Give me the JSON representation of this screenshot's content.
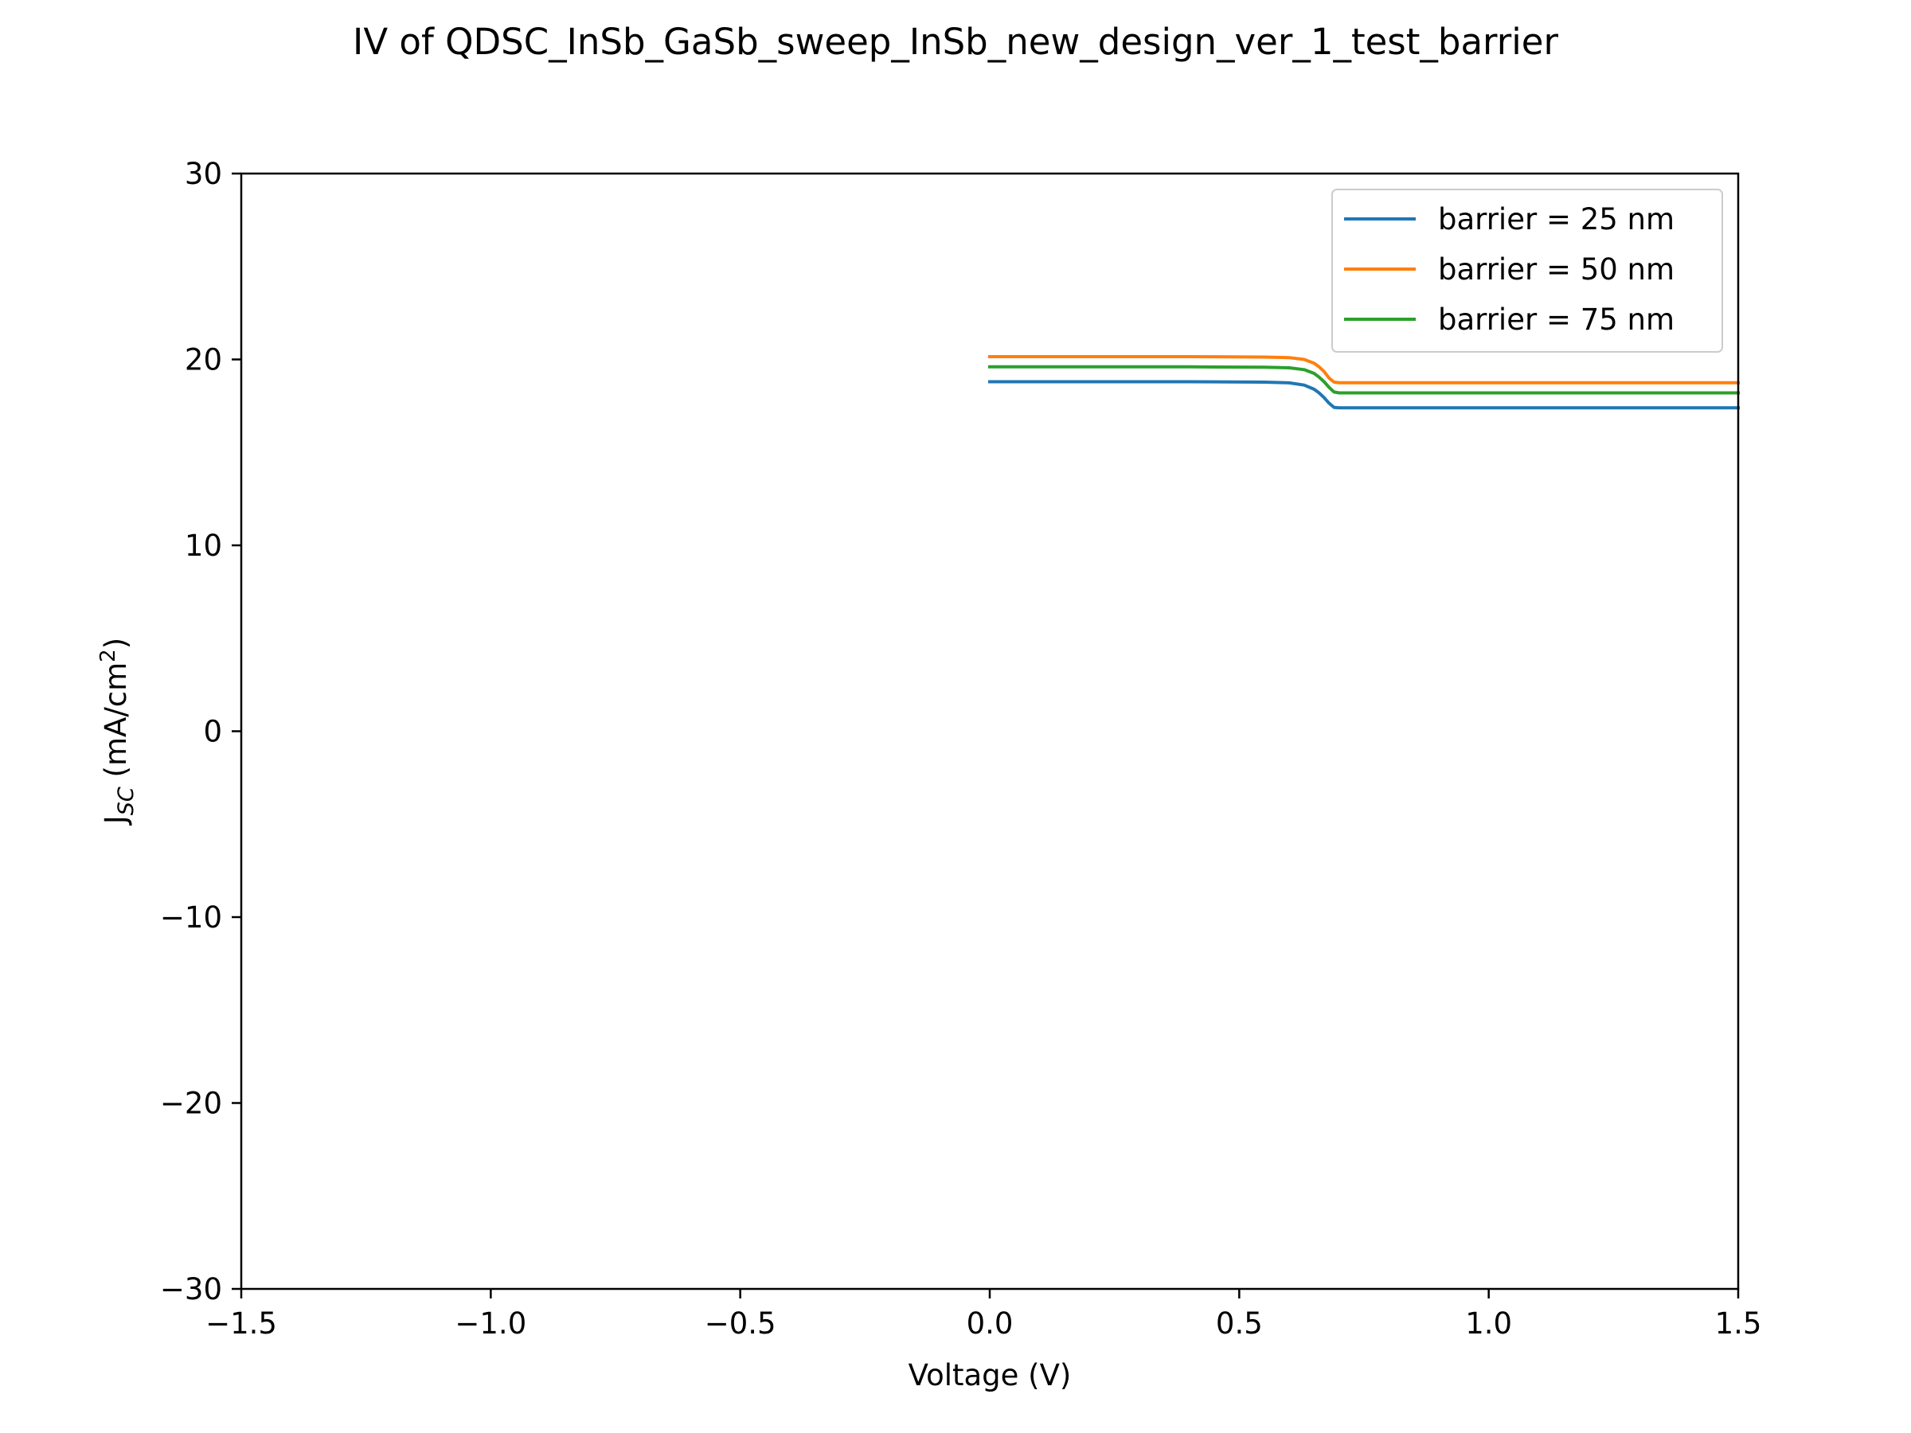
{
  "chart_data": {
    "type": "line",
    "title": "IV of QDSC_InSb_GaSb_sweep_InSb_new_design_ver_1_test_barrier",
    "xlabel": "Voltage (V)",
    "ylabel": {
      "main": "J",
      "sub": "SC",
      "unit_open": " (mA/cm",
      "sup": "2",
      "unit_close": ")"
    },
    "xlim": [
      -1.5,
      1.5
    ],
    "ylim": [
      -30,
      30
    ],
    "x_ticks": [
      {
        "value": -1.5,
        "label": "−1.5"
      },
      {
        "value": -1.0,
        "label": "−1.0"
      },
      {
        "value": -0.5,
        "label": "−0.5"
      },
      {
        "value": 0.0,
        "label": "0.0"
      },
      {
        "value": 0.5,
        "label": "0.5"
      },
      {
        "value": 1.0,
        "label": "1.0"
      },
      {
        "value": 1.5,
        "label": "1.5"
      }
    ],
    "y_ticks": [
      {
        "value": -30,
        "label": "−30"
      },
      {
        "value": -20,
        "label": "−20"
      },
      {
        "value": -10,
        "label": "−10"
      },
      {
        "value": 0,
        "label": "0"
      },
      {
        "value": 10,
        "label": "10"
      },
      {
        "value": 20,
        "label": "20"
      },
      {
        "value": 30,
        "label": "30"
      }
    ],
    "grid": false,
    "legend_position": "top-right",
    "series": [
      {
        "name": "barrier = 25 nm",
        "color": "#1f77b4",
        "points": [
          [
            0.0,
            18.8
          ],
          [
            0.4,
            18.8
          ],
          [
            0.55,
            18.78
          ],
          [
            0.6,
            18.74
          ],
          [
            0.63,
            18.62
          ],
          [
            0.65,
            18.4
          ],
          [
            0.66,
            18.2
          ],
          [
            0.67,
            17.95
          ],
          [
            0.68,
            17.65
          ],
          [
            0.69,
            17.42
          ],
          [
            0.7,
            17.4
          ],
          [
            1.5,
            17.4
          ]
        ]
      },
      {
        "name": "barrier = 50 nm",
        "color": "#ff7f0e",
        "points": [
          [
            0.0,
            20.15
          ],
          [
            0.4,
            20.15
          ],
          [
            0.55,
            20.13
          ],
          [
            0.6,
            20.1
          ],
          [
            0.63,
            20.0
          ],
          [
            0.65,
            19.8
          ],
          [
            0.66,
            19.6
          ],
          [
            0.67,
            19.35
          ],
          [
            0.68,
            19.0
          ],
          [
            0.69,
            18.78
          ],
          [
            0.7,
            18.75
          ],
          [
            1.5,
            18.75
          ]
        ]
      },
      {
        "name": "barrier = 75 nm",
        "color": "#2ca02c",
        "points": [
          [
            0.0,
            19.6
          ],
          [
            0.4,
            19.6
          ],
          [
            0.55,
            19.58
          ],
          [
            0.6,
            19.55
          ],
          [
            0.63,
            19.45
          ],
          [
            0.65,
            19.25
          ],
          [
            0.66,
            19.05
          ],
          [
            0.67,
            18.8
          ],
          [
            0.68,
            18.5
          ],
          [
            0.69,
            18.25
          ],
          [
            0.7,
            18.2
          ],
          [
            1.5,
            18.2
          ]
        ]
      }
    ]
  }
}
